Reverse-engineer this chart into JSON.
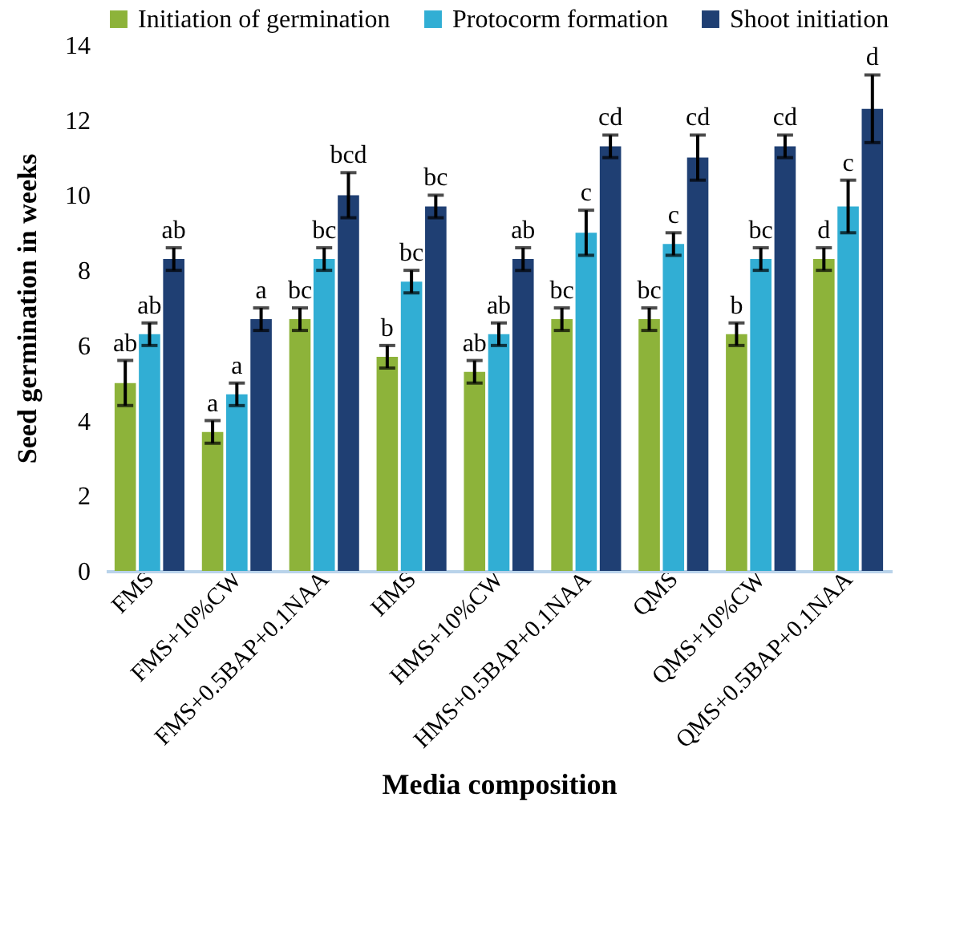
{
  "chart_data": {
    "type": "bar",
    "xlabel": "Media composition",
    "ylabel": "Seed germination in weeks",
    "categories": [
      "FMS",
      "FMS+10%CW",
      "FMS+0.5BAP+0.1NAA",
      "HMS",
      "HMS+10%CW",
      "HMS+0.5BAP+0.1NAA",
      "QMS",
      "QMS+10%CW",
      "QMS+0.5BAP+0.1NAA"
    ],
    "series": [
      {
        "name": "Initiation of germination",
        "color": "#8db33a",
        "values": [
          5.0,
          3.7,
          6.7,
          5.7,
          5.3,
          6.7,
          6.7,
          6.3,
          8.3
        ],
        "errors": [
          0.6,
          0.3,
          0.3,
          0.3,
          0.3,
          0.3,
          0.3,
          0.3,
          0.3
        ],
        "value_labels": [
          "ab",
          "a",
          "bc",
          "b",
          "ab",
          "bc",
          "bc",
          "b",
          "d"
        ]
      },
      {
        "name": "Protocorm formation",
        "color": "#31aed4",
        "values": [
          6.3,
          4.7,
          8.3,
          7.7,
          6.3,
          9.0,
          8.7,
          8.3,
          9.7
        ],
        "errors": [
          0.3,
          0.3,
          0.3,
          0.3,
          0.3,
          0.6,
          0.3,
          0.3,
          0.7
        ],
        "value_labels": [
          "ab",
          "a",
          "bc",
          "bc",
          "ab",
          "c",
          "c",
          "bc",
          "c"
        ]
      },
      {
        "name": "Shoot initiation",
        "color": "#1f3f73",
        "values": [
          8.3,
          6.7,
          10.0,
          9.7,
          8.3,
          11.3,
          11.0,
          11.3,
          12.3
        ],
        "errors": [
          0.3,
          0.3,
          0.6,
          0.3,
          0.3,
          0.3,
          0.6,
          0.3,
          0.9
        ],
        "value_labels": [
          "ab",
          "a",
          "bcd",
          "bc",
          "ab",
          "cd",
          "cd",
          "cd",
          "d"
        ]
      }
    ],
    "ylim": [
      0,
      14
    ],
    "yticks": [
      0,
      2,
      4,
      6,
      8,
      10,
      12,
      14
    ],
    "grid": false,
    "legend": "top"
  }
}
